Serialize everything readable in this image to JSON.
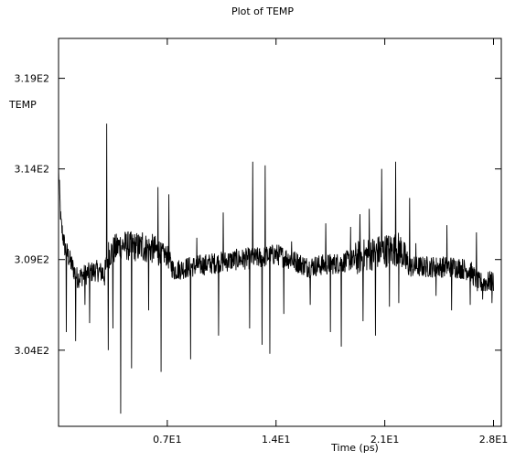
{
  "chart_data": {
    "type": "line",
    "title": "Plot of TEMP",
    "xlabel": "Time (ps)",
    "ylabel": "TEMP",
    "xlim": [
      0,
      28.5
    ],
    "ylim": [
      299.8,
      321.2
    ],
    "x_ticks": [
      7,
      14,
      21,
      28
    ],
    "x_tick_labels": [
      "0.7E1",
      "1.4E1",
      "2.1E1",
      "2.8E1"
    ],
    "y_ticks": [
      304,
      309,
      314,
      319
    ],
    "y_tick_labels": [
      "3.04E2",
      "3.09E2",
      "3.14E2",
      "3.19E2"
    ],
    "grid": false,
    "legend": "none",
    "line_color": "#000000",
    "series": [
      {
        "baseline": [
          [
            0.0,
            314.0
          ],
          [
            0.15,
            311.0
          ],
          [
            0.4,
            309.7
          ],
          [
            0.8,
            308.8
          ],
          [
            1.2,
            308.0
          ],
          [
            1.8,
            308.2
          ],
          [
            2.4,
            308.4
          ],
          [
            3.0,
            308.2
          ],
          [
            3.2,
            309.3
          ],
          [
            4.0,
            309.8
          ],
          [
            5.0,
            309.7
          ],
          [
            6.0,
            309.6
          ],
          [
            7.0,
            309.2
          ],
          [
            7.4,
            308.4
          ],
          [
            8.5,
            308.6
          ],
          [
            10.0,
            308.8
          ],
          [
            11.5,
            309.0
          ],
          [
            13.0,
            309.1
          ],
          [
            14.0,
            309.3
          ],
          [
            15.0,
            309.0
          ],
          [
            16.0,
            308.6
          ],
          [
            17.0,
            308.7
          ],
          [
            18.0,
            308.8
          ],
          [
            19.0,
            309.0
          ],
          [
            20.0,
            309.3
          ],
          [
            21.0,
            309.5
          ],
          [
            22.0,
            309.6
          ],
          [
            22.5,
            308.6
          ],
          [
            24.0,
            308.6
          ],
          [
            25.5,
            308.6
          ],
          [
            26.5,
            308.4
          ],
          [
            27.0,
            307.7
          ],
          [
            28.0,
            307.8
          ]
        ],
        "noise_amplitude": 0.6,
        "spikes": [
          [
            0.5,
            305.0
          ],
          [
            1.1,
            304.5
          ],
          [
            1.7,
            306.5
          ],
          [
            2.0,
            305.5
          ],
          [
            3.1,
            316.5
          ],
          [
            3.2,
            304.0
          ],
          [
            3.5,
            305.2
          ],
          [
            4.0,
            300.5
          ],
          [
            4.7,
            303.0
          ],
          [
            5.4,
            310.5
          ],
          [
            5.8,
            306.2
          ],
          [
            6.4,
            313.0
          ],
          [
            6.6,
            302.8
          ],
          [
            7.1,
            312.6
          ],
          [
            8.5,
            303.5
          ],
          [
            8.9,
            310.2
          ],
          [
            10.3,
            304.8
          ],
          [
            10.6,
            311.6
          ],
          [
            12.3,
            305.2
          ],
          [
            12.5,
            314.4
          ],
          [
            13.1,
            304.3
          ],
          [
            13.3,
            314.2
          ],
          [
            13.6,
            303.8
          ],
          [
            14.5,
            306.0
          ],
          [
            15.0,
            310.0
          ],
          [
            16.2,
            306.5
          ],
          [
            17.2,
            311.0
          ],
          [
            17.5,
            305.0
          ],
          [
            18.2,
            304.2
          ],
          [
            18.8,
            310.8
          ],
          [
            19.4,
            311.5
          ],
          [
            19.6,
            305.6
          ],
          [
            20.0,
            311.8
          ],
          [
            20.4,
            304.8
          ],
          [
            20.8,
            314.0
          ],
          [
            21.3,
            306.4
          ],
          [
            21.7,
            314.4
          ],
          [
            21.9,
            306.6
          ],
          [
            22.6,
            312.4
          ],
          [
            23.0,
            309.9
          ],
          [
            24.3,
            307.0
          ],
          [
            25.0,
            310.9
          ],
          [
            25.3,
            306.2
          ],
          [
            26.5,
            306.5
          ],
          [
            26.9,
            310.5
          ],
          [
            27.3,
            306.8
          ],
          [
            27.9,
            306.6
          ]
        ]
      }
    ]
  }
}
